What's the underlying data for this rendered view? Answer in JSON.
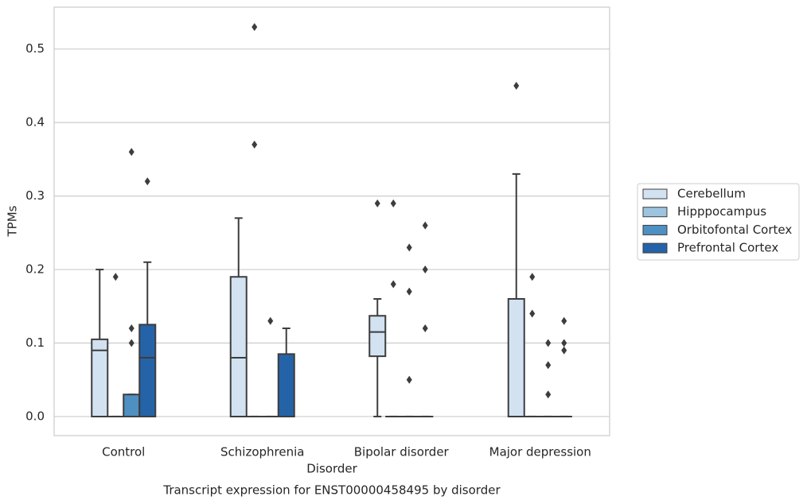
{
  "chart_data": {
    "type": "box",
    "title": "Transcript expression for ENST00000458495 by disorder",
    "x_label": "Disorder",
    "y_label": "TPMs",
    "categories": [
      "Control",
      "Schizophrenia",
      "Bipolar disorder",
      "Major depression"
    ],
    "ylim": [
      -0.026,
      0.557
    ],
    "yticks": [
      {
        "value": 0,
        "label": "0.0"
      },
      0.1,
      0.2,
      0.3,
      0.4,
      0.5
    ],
    "grid": true,
    "legend": "right",
    "series": [
      {
        "name": "Cerebellum",
        "color": "#d3e2f1",
        "boxes": [
          {
            "min": 0,
            "q1": 0,
            "median": 0.09,
            "q3": 0.105,
            "max": 0.2,
            "outliers": []
          },
          {
            "min": 0,
            "q1": 0,
            "median": 0.08,
            "q3": 0.19,
            "max": 0.27,
            "outliers": []
          },
          {
            "min": 0,
            "q1": 0.082,
            "median": 0.115,
            "q3": 0.137,
            "max": 0.16,
            "outliers": [
              0.29
            ]
          },
          {
            "min": 0,
            "q1": 0,
            "median": 0,
            "q3": 0.16,
            "max": 0.33,
            "outliers": [
              0.45
            ]
          }
        ]
      },
      {
        "name": "Hipppocampus",
        "color": "#9dc3df",
        "boxes": [
          {
            "min": 0,
            "q1": 0,
            "median": 0,
            "q3": 0,
            "max": 0,
            "outliers": [
              0.19
            ]
          },
          {
            "min": 0,
            "q1": 0,
            "median": 0,
            "q3": 0,
            "max": 0,
            "outliers": [
              0.53,
              0.37
            ]
          },
          {
            "min": 0,
            "q1": 0,
            "median": 0,
            "q3": 0,
            "max": 0,
            "outliers": [
              0.29,
              0.18
            ]
          },
          {
            "min": 0,
            "q1": 0,
            "median": 0,
            "q3": 0,
            "max": 0,
            "outliers": [
              0.19,
              0.14
            ]
          }
        ]
      },
      {
        "name": "Orbitofontal Cortex",
        "color": "#4f90c3",
        "boxes": [
          {
            "min": 0,
            "q1": 0,
            "median": 0,
            "q3": 0.03,
            "max": 0.03,
            "outliers": [
              0.36,
              0.12,
              0.1
            ]
          },
          {
            "min": 0,
            "q1": 0,
            "median": 0,
            "q3": 0,
            "max": 0,
            "outliers": [
              0.13
            ]
          },
          {
            "min": 0,
            "q1": 0,
            "median": 0,
            "q3": 0,
            "max": 0,
            "outliers": [
              0.23,
              0.17,
              0.05
            ]
          },
          {
            "min": 0,
            "q1": 0,
            "median": 0,
            "q3": 0,
            "max": 0,
            "outliers": [
              0.1,
              0.07,
              0.03
            ]
          }
        ]
      },
      {
        "name": "Prefrontal Cortex",
        "color": "#2563a8",
        "boxes": [
          {
            "min": 0,
            "q1": 0,
            "median": 0.08,
            "q3": 0.125,
            "max": 0.21,
            "outliers": [
              0.32
            ]
          },
          {
            "min": 0,
            "q1": 0,
            "median": 0,
            "q3": 0.085,
            "max": 0.12,
            "outliers": []
          },
          {
            "min": 0,
            "q1": 0,
            "median": 0,
            "q3": 0,
            "max": 0,
            "outliers": [
              0.26,
              0.2,
              0.12
            ]
          },
          {
            "min": 0,
            "q1": 0,
            "median": 0,
            "q3": 0,
            "max": 0,
            "outliers": [
              0.13,
              0.1,
              0.09
            ]
          }
        ]
      }
    ]
  }
}
